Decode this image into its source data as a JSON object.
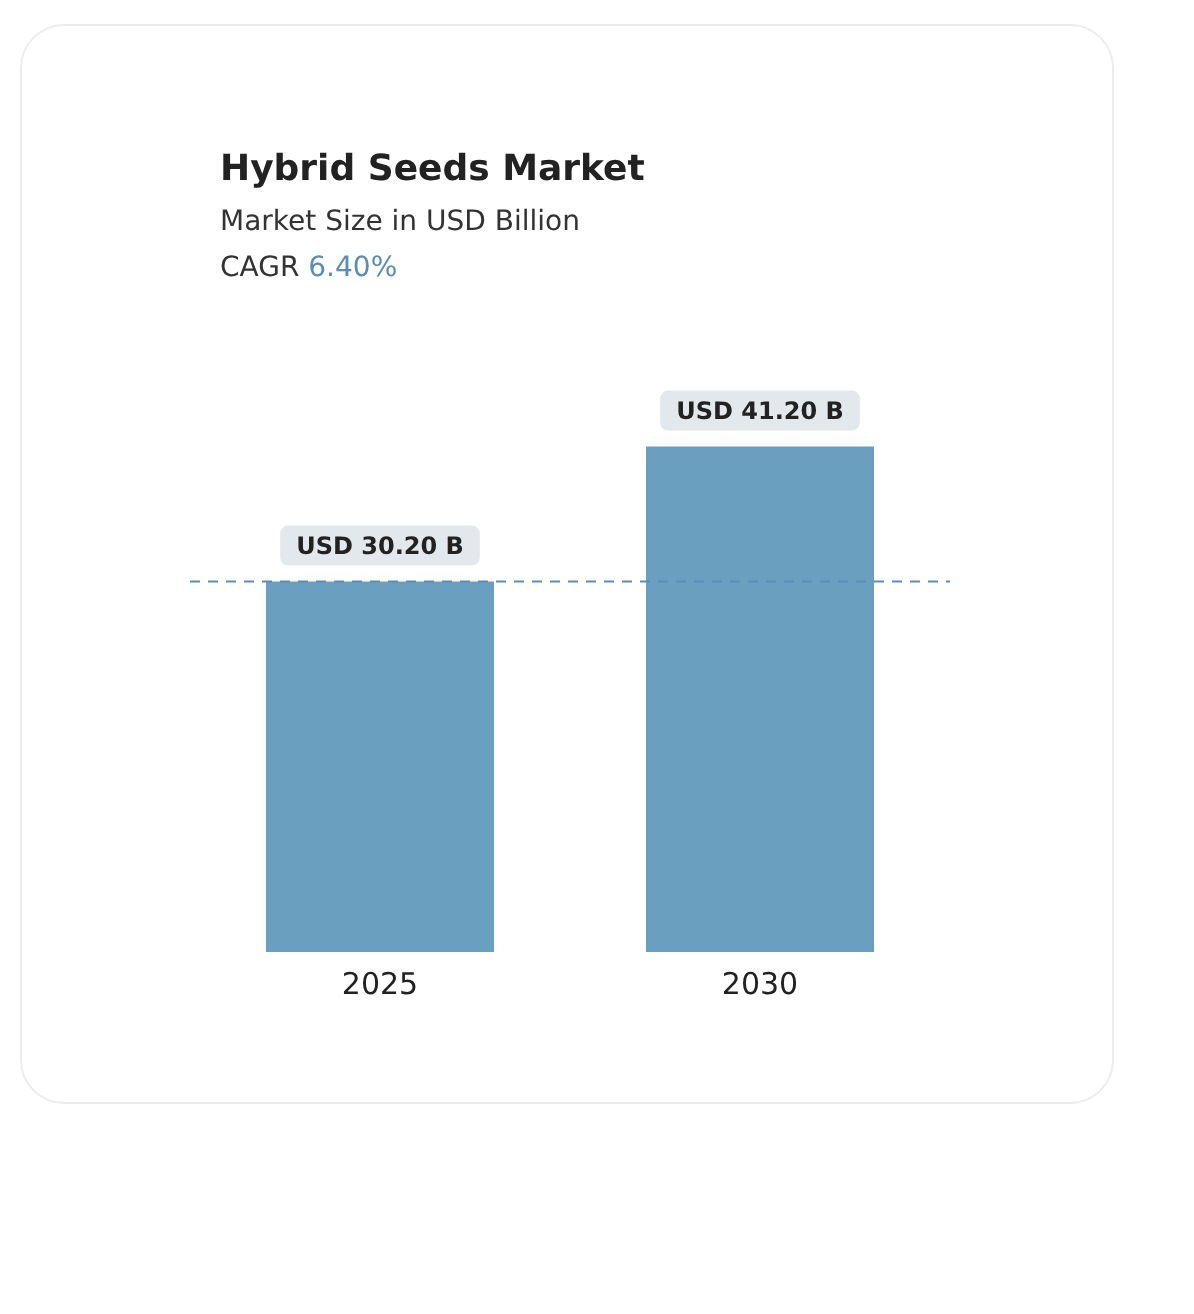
{
  "chart_data": {
    "type": "bar",
    "title": "Hybrid Seeds Market",
    "subtitle": "Market Size in USD Billion",
    "annotations": [
      "CAGR 6.40%"
    ],
    "categories": [
      "2025",
      "2030"
    ],
    "values": [
      30.2,
      41.2
    ],
    "color": "#6a9fc0",
    "value_labels": [
      "USD 30.20 B",
      "USD 41.20 B"
    ],
    "ref_lines": [
      {
        "axis": "y",
        "value": 30.2,
        "color": "#5b8db8",
        "line_style": "dashed"
      }
    ],
    "grid": false,
    "legend": false
  }
}
